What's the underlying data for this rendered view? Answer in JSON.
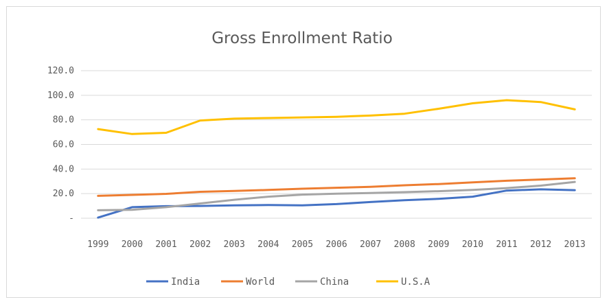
{
  "chart_data": {
    "type": "line",
    "title": "Gross Enrollment  Ratio",
    "xlabel": "",
    "ylabel": "",
    "categories": [
      "1999",
      "2000",
      "2001",
      "2002",
      "2003",
      "2004",
      "2005",
      "2006",
      "2007",
      "2008",
      "2009",
      "2010",
      "2011",
      "2012",
      "2013"
    ],
    "ylim": [
      0,
      120
    ],
    "yticks": [
      0,
      20,
      40,
      60,
      80,
      100,
      120
    ],
    "ytick_labels": [
      "-",
      "20.0",
      "40.0",
      "60.0",
      "80.0",
      "100.0",
      "120.0"
    ],
    "grid": true,
    "legend_position": "bottom",
    "series": [
      {
        "name": "India",
        "color": "#4472C4",
        "values": [
          0.5,
          9.0,
          9.8,
          10.0,
          10.5,
          10.7,
          10.5,
          11.5,
          13.2,
          14.6,
          15.8,
          17.5,
          22.5,
          23.5,
          22.8
        ]
      },
      {
        "name": "World",
        "color": "#ED7D31",
        "values": [
          18.2,
          19.0,
          19.8,
          21.5,
          22.2,
          23.0,
          24.0,
          24.8,
          25.5,
          26.8,
          27.8,
          29.2,
          30.5,
          31.5,
          32.5
        ]
      },
      {
        "name": "China",
        "color": "#A5A5A5",
        "values": [
          6.5,
          6.8,
          9.0,
          12.0,
          15.0,
          17.5,
          19.2,
          20.0,
          20.5,
          21.2,
          22.0,
          23.0,
          24.5,
          26.5,
          29.5
        ]
      },
      {
        "name": "U.S.A",
        "color": "#FFC000",
        "values": [
          72.5,
          68.5,
          69.5,
          79.5,
          81.0,
          81.5,
          82.0,
          82.5,
          83.5,
          85.0,
          89.0,
          93.5,
          96.0,
          94.5,
          88.5
        ]
      }
    ]
  }
}
